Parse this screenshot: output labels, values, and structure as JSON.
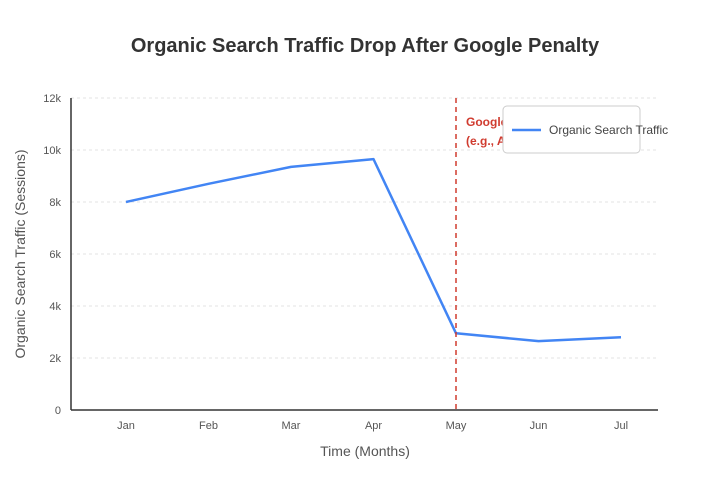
{
  "chart_data": {
    "type": "line",
    "title": "Organic Search Traffic Drop After Google Penalty",
    "xlabel": "Time (Months)",
    "ylabel": "Organic Search Traffic (Sessions)",
    "categories": [
      "Jan",
      "Feb",
      "Mar",
      "Apr",
      "May",
      "Jun",
      "Jul"
    ],
    "series": [
      {
        "name": "Organic Search Traffic",
        "values": [
          8000,
          8700,
          9350,
          9650,
          2950,
          2650,
          2800
        ],
        "color": "#4285f4"
      }
    ],
    "ylim": [
      0,
      12000
    ],
    "yticks": [
      0,
      2000,
      4000,
      6000,
      8000,
      10000,
      12000
    ],
    "ytick_labels": [
      "0",
      "2k",
      "4k",
      "6k",
      "8k",
      "10k",
      "12k"
    ],
    "grid": true,
    "legend": "top-right",
    "annotation": {
      "category": "May",
      "lines": [
        "Google Penalty",
        "(e.g., Algorithm Update)"
      ],
      "color": "#d03b2f"
    }
  }
}
